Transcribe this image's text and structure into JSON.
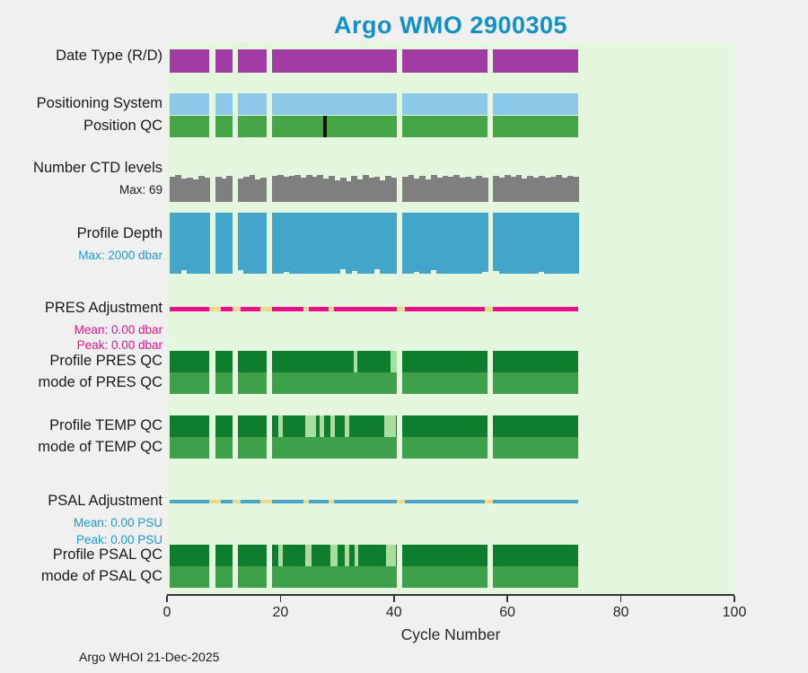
{
  "footer": "Argo WHOI 21-Dec-2025",
  "colors": {
    "title": "#1291c6",
    "page_background": "#f0f0f0",
    "plot_background": "#e4f7de",
    "axis": "#262626",
    "date_type": "#a23ba3",
    "positioning_system": "#8cc8e8",
    "position_qc": "#46a546",
    "position_qc_flag": "#141414",
    "ctd_levels": "#7f7f7f",
    "profile_depth": "#42a5c9",
    "pres_adjustment": "#ec0f8c",
    "psal_adjustment": "#4aa5c8",
    "adjustment_gap": "#ecd98a",
    "qc_dark_green": "#0e7d2d",
    "qc_mode_green": "#3fa04c",
    "qc_light_green": "#a8dfa0"
  },
  "chart_data": {
    "type": "bar",
    "title": "Argo WMO 2900305",
    "xlabel": "Cycle Number",
    "x_range": [
      0,
      100
    ],
    "x_ticks": [
      0,
      20,
      40,
      60,
      80,
      100
    ],
    "cycles": {
      "first": 1,
      "last": 72,
      "missing": [
        8,
        12,
        18,
        41,
        57
      ]
    },
    "annotations": {
      "ctd_max": "Max: 69",
      "depth_max": "Max: 2000 dbar",
      "pres_mean": "Mean: 0.00 dbar",
      "pres_peak": "Peak: 0.00 dbar",
      "psal_mean": "Mean: 0.00 PSU",
      "psal_peak": "Peak: 0.00 PSU"
    },
    "rows": [
      {
        "id": "date_type",
        "label": "Date Type (R/D)",
        "color": "#a23ba3",
        "segments": [
          [
            0.5,
            7.5
          ],
          [
            8.5,
            11.5
          ],
          [
            12.5,
            17.5
          ],
          [
            18.5,
            40.5
          ],
          [
            41.5,
            56.5
          ],
          [
            57.5,
            72.5
          ]
        ]
      },
      {
        "id": "positioning",
        "label": "Positioning System",
        "color": "#8cc8e8",
        "segments": [
          [
            0.5,
            7.5
          ],
          [
            8.5,
            11.5
          ],
          [
            12.5,
            17.5
          ],
          [
            18.5,
            40.5
          ],
          [
            41.5,
            56.5
          ],
          [
            57.5,
            72.5
          ]
        ]
      },
      {
        "id": "position_qc",
        "label": "Position QC",
        "color": "#46a546",
        "segments": [
          [
            0.5,
            7.5
          ],
          [
            8.5,
            11.5
          ],
          [
            12.5,
            17.5
          ],
          [
            18.5,
            40.5
          ],
          [
            41.5,
            56.5
          ],
          [
            57.5,
            72.5
          ]
        ],
        "overlays": [
          {
            "from": 27.6,
            "to": 28.2,
            "color": "#141414"
          }
        ]
      },
      {
        "id": "ctd",
        "label": "Number CTD levels",
        "color": "#7f7f7f",
        "max": 69,
        "values": [
          65,
          68,
          60,
          63,
          58,
          66,
          62,
          null,
          64,
          60,
          67,
          null,
          59,
          65,
          69,
          57,
          63,
          null,
          66,
          69,
          64,
          67,
          69,
          62,
          68,
          65,
          69,
          60,
          67,
          55,
          63,
          52,
          66,
          58,
          69,
          61,
          64,
          56,
          67,
          63,
          null,
          65,
          69,
          60,
          66,
          58,
          68,
          62,
          67,
          64,
          69,
          61,
          65,
          59,
          67,
          63,
          null,
          66,
          62,
          68,
          64,
          69,
          60,
          66,
          63,
          67,
          61,
          65,
          68,
          62,
          66,
          64
        ]
      },
      {
        "id": "depth",
        "label": "Profile Depth",
        "color": "#42a5c9",
        "max": 2000,
        "unit": "dbar",
        "values": [
          2000,
          2000,
          1870,
          2000,
          2000,
          2000,
          2000,
          null,
          2000,
          2000,
          2000,
          null,
          1880,
          2000,
          2000,
          2000,
          2000,
          null,
          2000,
          2000,
          1950,
          2000,
          2000,
          2000,
          2000,
          2000,
          2000,
          2000,
          2000,
          2000,
          1850,
          2000,
          1900,
          2000,
          2000,
          2000,
          1860,
          2000,
          2000,
          2000,
          null,
          2000,
          2000,
          1950,
          2000,
          2000,
          1880,
          2000,
          2000,
          2000,
          2000,
          2000,
          2000,
          2000,
          2000,
          1930,
          null,
          1900,
          2000,
          2000,
          2000,
          2000,
          2000,
          2000,
          2000,
          1950,
          2000,
          2000,
          2000,
          2000,
          2000,
          2000
        ]
      },
      {
        "id": "pres_adj",
        "label": "PRES Adjustment",
        "color": "#ec0f8c",
        "segments": [
          [
            0.5,
            72.5
          ]
        ],
        "overlays": [
          {
            "from": 7.5,
            "to": 9.5,
            "color": "#ecd98a"
          },
          {
            "from": 11.5,
            "to": 13,
            "color": "#ecd98a"
          },
          {
            "from": 16.5,
            "to": 18.5,
            "color": "#ecd98a"
          },
          {
            "from": 24,
            "to": 25,
            "color": "#ecd98a"
          },
          {
            "from": 28.5,
            "to": 29.5,
            "color": "#ecd98a"
          },
          {
            "from": 40.5,
            "to": 42,
            "color": "#ecd98a"
          },
          {
            "from": 56,
            "to": 57.5,
            "color": "#ecd98a"
          }
        ]
      },
      {
        "id": "profile_pres_qc",
        "label": "Profile PRES QC",
        "color": "#0e7d2d",
        "segments": [
          [
            0.5,
            7.5
          ],
          [
            8.5,
            11.5
          ],
          [
            12.5,
            17.5
          ],
          [
            18.5,
            40.5
          ],
          [
            41.5,
            56.5
          ],
          [
            57.5,
            72.5
          ]
        ],
        "overlays": [
          {
            "from": 32.9,
            "to": 33.6,
            "color": "#a8dfa0"
          },
          {
            "from": 39.4,
            "to": 40.5,
            "color": "#a8dfa0"
          }
        ]
      },
      {
        "id": "mode_pres_qc",
        "label": "mode of PRES QC",
        "color": "#3fa04c",
        "segments": [
          [
            0.5,
            7.5
          ],
          [
            8.5,
            11.5
          ],
          [
            12.5,
            17.5
          ],
          [
            18.5,
            40.5
          ],
          [
            41.5,
            56.5
          ],
          [
            57.5,
            72.5
          ]
        ]
      },
      {
        "id": "profile_temp_qc",
        "label": "Profile TEMP QC",
        "color": "#0e7d2d",
        "segments": [
          [
            0.5,
            7.5
          ],
          [
            8.5,
            11.5
          ],
          [
            12.5,
            17.5
          ],
          [
            18.5,
            40.5
          ],
          [
            41.5,
            56.5
          ],
          [
            57.5,
            72.5
          ]
        ],
        "overlays": [
          {
            "from": 19.6,
            "to": 20.4,
            "color": "#a8dfa0"
          },
          {
            "from": 24.4,
            "to": 26.3,
            "color": "#a8dfa0"
          },
          {
            "from": 26.9,
            "to": 27.7,
            "color": "#a8dfa0"
          },
          {
            "from": 28.8,
            "to": 29.6,
            "color": "#a8dfa0"
          },
          {
            "from": 31.4,
            "to": 32.2,
            "color": "#a8dfa0"
          },
          {
            "from": 38.3,
            "to": 40.3,
            "color": "#a8dfa0"
          }
        ]
      },
      {
        "id": "mode_temp_qc",
        "label": "mode of TEMP QC",
        "color": "#3fa04c",
        "segments": [
          [
            0.5,
            7.5
          ],
          [
            8.5,
            11.5
          ],
          [
            12.5,
            17.5
          ],
          [
            18.5,
            40.5
          ],
          [
            41.5,
            56.5
          ],
          [
            57.5,
            72.5
          ]
        ]
      },
      {
        "id": "psal_adj",
        "label": "PSAL Adjustment",
        "color": "#4aa5c8",
        "segments": [
          [
            0.5,
            72.5
          ]
        ],
        "overlays": [
          {
            "from": 7.5,
            "to": 9.5,
            "color": "#ecd98a"
          },
          {
            "from": 11.5,
            "to": 13,
            "color": "#ecd98a"
          },
          {
            "from": 16.5,
            "to": 18.5,
            "color": "#ecd98a"
          },
          {
            "from": 24,
            "to": 25,
            "color": "#ecd98a"
          },
          {
            "from": 28.5,
            "to": 29.5,
            "color": "#ecd98a"
          },
          {
            "from": 40.5,
            "to": 42,
            "color": "#ecd98a"
          },
          {
            "from": 56,
            "to": 57.5,
            "color": "#ecd98a"
          }
        ]
      },
      {
        "id": "profile_psal_qc",
        "label": "Profile PSAL QC",
        "color": "#0e7d2d",
        "segments": [
          [
            0.5,
            7.5
          ],
          [
            8.5,
            11.5
          ],
          [
            12.5,
            17.5
          ],
          [
            18.5,
            40.5
          ],
          [
            41.5,
            56.5
          ],
          [
            57.5,
            72.5
          ]
        ],
        "overlays": [
          {
            "from": 19.6,
            "to": 20.4,
            "color": "#a8dfa0"
          },
          {
            "from": 24.4,
            "to": 25.5,
            "color": "#a8dfa0"
          },
          {
            "from": 28.8,
            "to": 30,
            "color": "#a8dfa0"
          },
          {
            "from": 31.4,
            "to": 32.2,
            "color": "#a8dfa0"
          },
          {
            "from": 33,
            "to": 33.7,
            "color": "#a8dfa0"
          },
          {
            "from": 38.6,
            "to": 40.3,
            "color": "#a8dfa0"
          }
        ]
      },
      {
        "id": "mode_psal_qc",
        "label": "mode of PSAL QC",
        "color": "#3fa04c",
        "segments": [
          [
            0.5,
            7.5
          ],
          [
            8.5,
            11.5
          ],
          [
            12.5,
            17.5
          ],
          [
            18.5,
            40.5
          ],
          [
            41.5,
            56.5
          ],
          [
            57.5,
            72.5
          ]
        ]
      }
    ]
  }
}
